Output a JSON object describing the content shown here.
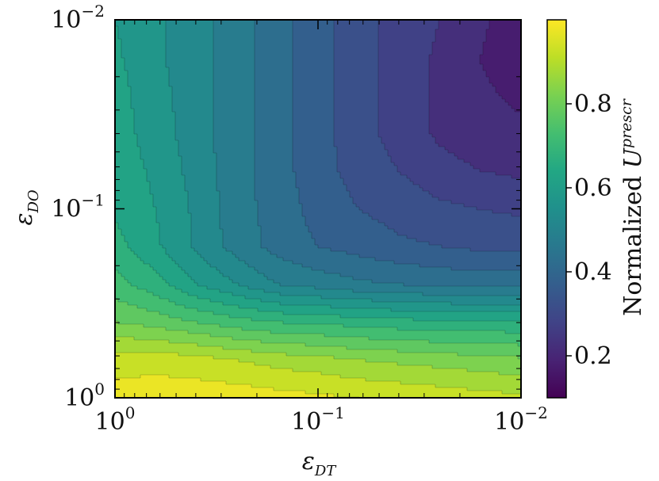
{
  "chart_data": {
    "type": "heatmap",
    "plot_style": "filled-contour",
    "colormap": "viridis",
    "x_axis": {
      "label_symbol": "ε",
      "label_subscript": "DT",
      "scale": "log",
      "inverted": true,
      "range": [
        1,
        0.01
      ],
      "tick_labels": [
        {
          "base": "10",
          "exp": "0",
          "value": 1
        },
        {
          "base": "10",
          "exp": "−1",
          "value": 0.1
        },
        {
          "base": "10",
          "exp": "−2",
          "value": 0.01
        }
      ]
    },
    "y_axis": {
      "label_symbol": "ε",
      "label_subscript": "DO",
      "scale": "log",
      "inverted": true,
      "range": [
        1,
        0.01
      ],
      "tick_labels": [
        {
          "base": "10",
          "exp": "0",
          "value": 1
        },
        {
          "base": "10",
          "exp": "−1",
          "value": 0.1
        },
        {
          "base": "10",
          "exp": "−2",
          "value": 0.01
        }
      ]
    },
    "colorbar": {
      "label": "Normalized",
      "label_symbol": "U",
      "label_superscript": "prescr",
      "range": [
        0.1,
        1.0
      ],
      "ticks": [
        "0.2",
        "0.4",
        "0.6",
        "0.8"
      ],
      "tick_values": [
        0.2,
        0.4,
        0.6,
        0.8
      ]
    },
    "x_values": [
      1,
      0.631,
      0.398,
      0.251,
      0.158,
      0.1,
      0.063,
      0.04,
      0.025,
      0.016,
      0.01
    ],
    "y_values": [
      1,
      0.631,
      0.398,
      0.251,
      0.158,
      0.1,
      0.063,
      0.04,
      0.025,
      0.016,
      0.01
    ],
    "z": [
      [
        0.97,
        0.98,
        0.98,
        0.98,
        0.97,
        0.96,
        0.95,
        0.94,
        0.93,
        0.92,
        0.91
      ],
      [
        0.93,
        0.93,
        0.92,
        0.9,
        0.88,
        0.87,
        0.85,
        0.84,
        0.83,
        0.82,
        0.81
      ],
      [
        0.8,
        0.78,
        0.75,
        0.72,
        0.7,
        0.69,
        0.68,
        0.67,
        0.66,
        0.66,
        0.66
      ],
      [
        0.72,
        0.67,
        0.6,
        0.55,
        0.5,
        0.48,
        0.46,
        0.45,
        0.44,
        0.43,
        0.43
      ],
      [
        0.67,
        0.61,
        0.54,
        0.48,
        0.43,
        0.4,
        0.38,
        0.36,
        0.35,
        0.34,
        0.34
      ],
      [
        0.64,
        0.6,
        0.54,
        0.47,
        0.43,
        0.38,
        0.35,
        0.33,
        0.31,
        0.3,
        0.29
      ],
      [
        0.63,
        0.59,
        0.53,
        0.47,
        0.42,
        0.37,
        0.33,
        0.3,
        0.27,
        0.25,
        0.24
      ],
      [
        0.62,
        0.58,
        0.52,
        0.47,
        0.42,
        0.37,
        0.32,
        0.28,
        0.24,
        0.22,
        0.21
      ],
      [
        0.62,
        0.57,
        0.52,
        0.47,
        0.42,
        0.37,
        0.32,
        0.28,
        0.24,
        0.21,
        0.19
      ],
      [
        0.61,
        0.56,
        0.52,
        0.47,
        0.42,
        0.37,
        0.32,
        0.28,
        0.24,
        0.2,
        0.17
      ],
      [
        0.6,
        0.56,
        0.52,
        0.47,
        0.42,
        0.37,
        0.32,
        0.28,
        0.25,
        0.21,
        0.17
      ]
    ],
    "contour_levels": [
      0.1,
      0.15,
      0.2,
      0.25,
      0.3,
      0.35,
      0.4,
      0.45,
      0.5,
      0.55,
      0.6,
      0.65,
      0.7,
      0.75,
      0.8,
      0.85,
      0.9,
      0.95,
      1.0
    ]
  }
}
